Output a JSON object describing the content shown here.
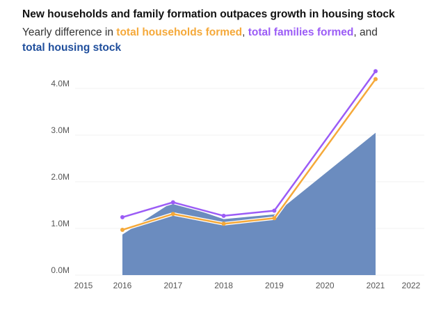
{
  "chart_data": {
    "type": "area+line",
    "title": "New households and family formation outpaces growth in housing stock",
    "subtitle": {
      "prefix": "Yearly difference in ",
      "households": "total households formed",
      "sep1": ", ",
      "families": "total families formed",
      "sep2": ", and",
      "housing": "total housing stock"
    },
    "xlabel": "",
    "ylabel": "",
    "x_ticks": [
      "2015",
      "2016",
      "2017",
      "2018",
      "2019",
      "2020",
      "2021",
      "2022"
    ],
    "y_ticks": [
      "0.0M",
      "1.0M",
      "2.0M",
      "3.0M",
      "4.0M"
    ],
    "ylim": [
      0,
      4.4
    ],
    "xlim": [
      2015,
      2022
    ],
    "grid": true,
    "series": [
      {
        "name": "total housing stock",
        "type": "area",
        "color": "#6b8cbf",
        "x": [
          2016,
          2017,
          2018,
          2019,
          2021
        ],
        "values": [
          0.87,
          1.57,
          1.2,
          1.3,
          3.05
        ]
      },
      {
        "name": "total households formed",
        "type": "line",
        "color": "#f5a93a",
        "x": [
          2016,
          2017,
          2018,
          2019,
          2021
        ],
        "values": [
          0.97,
          1.31,
          1.1,
          1.22,
          4.2
        ]
      },
      {
        "name": "total families formed",
        "type": "line",
        "color": "#9b5cf6",
        "x": [
          2016,
          2017,
          2018,
          2019,
          2021
        ],
        "values": [
          1.24,
          1.56,
          1.27,
          1.38,
          4.37
        ]
      }
    ]
  }
}
